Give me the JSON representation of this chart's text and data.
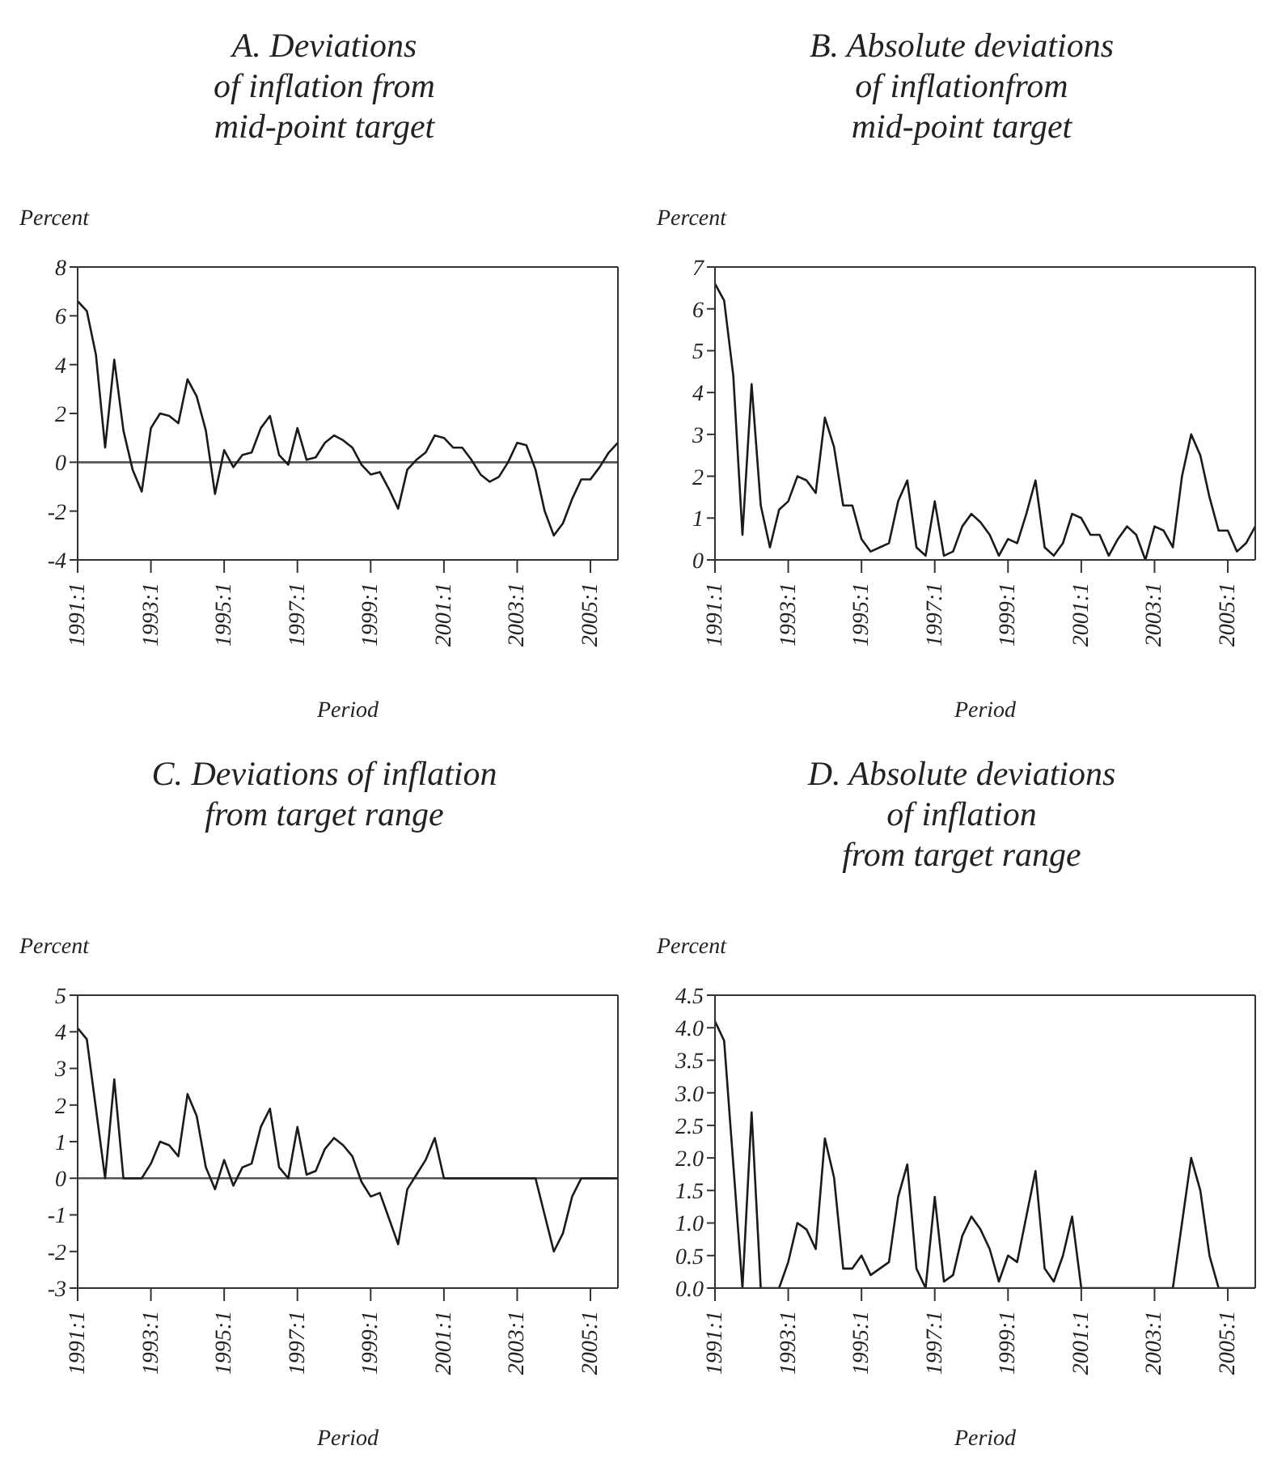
{
  "chart_data": [
    {
      "type": "line",
      "title": "A. Deviations\nof inflation from\nmid-point target",
      "ylabel": "Percent",
      "xlabel": "Period",
      "categories": [
        "1991:1",
        null,
        null,
        null,
        null,
        null,
        null,
        null,
        "1993:1",
        null,
        null,
        null,
        null,
        null,
        null,
        null,
        "1995:1",
        null,
        null,
        null,
        null,
        null,
        null,
        null,
        "1997:1",
        null,
        null,
        null,
        null,
        null,
        null,
        null,
        "1999:1",
        null,
        null,
        null,
        null,
        null,
        null,
        null,
        "2001:1",
        null,
        null,
        null,
        null,
        null,
        null,
        null,
        "2003:1",
        null,
        null,
        null,
        null,
        null,
        null,
        null,
        "2005:1",
        null,
        null,
        null
      ],
      "series": [
        {
          "color": "#1a1a1a",
          "values": [
            6.6,
            6.2,
            4.4,
            0.6,
            4.2,
            1.3,
            -0.3,
            -1.2,
            1.4,
            2.0,
            1.9,
            1.6,
            3.4,
            2.7,
            1.3,
            -1.3,
            0.5,
            -0.2,
            0.3,
            0.4,
            1.4,
            1.9,
            0.3,
            -0.1,
            1.4,
            0.1,
            0.2,
            0.8,
            1.1,
            0.9,
            0.6,
            -0.1,
            -0.5,
            -0.4,
            -1.1,
            -1.9,
            -0.3,
            0.1,
            0.4,
            1.1,
            1.0,
            0.6,
            0.6,
            0.1,
            -0.5,
            -0.8,
            -0.6,
            0.0,
            0.8,
            0.7,
            -0.3,
            -2.0,
            -3.0,
            -2.5,
            -1.5,
            -0.7,
            -0.7,
            -0.2,
            0.4,
            0.8
          ]
        }
      ],
      "ylim": [
        -4,
        8
      ],
      "yticks": [
        -4,
        -2,
        0,
        2,
        4,
        6,
        8
      ],
      "ref_lines": [
        {
          "axis": "y",
          "value": 0,
          "color": "#555555"
        }
      ]
    },
    {
      "type": "line",
      "title": "B. Absolute deviations\nof inflationfrom\nmid-point target",
      "ylabel": "Percent",
      "xlabel": "Period",
      "categories": [
        "1991:1",
        null,
        null,
        null,
        null,
        null,
        null,
        null,
        "1993:1",
        null,
        null,
        null,
        null,
        null,
        null,
        null,
        "1995:1",
        null,
        null,
        null,
        null,
        null,
        null,
        null,
        "1997:1",
        null,
        null,
        null,
        null,
        null,
        null,
        null,
        "1999:1",
        null,
        null,
        null,
        null,
        null,
        null,
        null,
        "2001:1",
        null,
        null,
        null,
        null,
        null,
        null,
        null,
        "2003:1",
        null,
        null,
        null,
        null,
        null,
        null,
        null,
        "2005:1",
        null,
        null,
        null
      ],
      "series": [
        {
          "color": "#1a1a1a",
          "values": [
            6.6,
            6.2,
            4.4,
            0.6,
            4.2,
            1.3,
            0.3,
            1.2,
            1.4,
            2.0,
            1.9,
            1.6,
            3.4,
            2.7,
            1.3,
            1.3,
            0.5,
            0.2,
            0.3,
            0.4,
            1.4,
            1.9,
            0.3,
            0.1,
            1.4,
            0.1,
            0.2,
            0.8,
            1.1,
            0.9,
            0.6,
            0.1,
            0.5,
            0.4,
            1.1,
            1.9,
            0.3,
            0.1,
            0.4,
            1.1,
            1.0,
            0.6,
            0.6,
            0.1,
            0.5,
            0.8,
            0.6,
            0.0,
            0.8,
            0.7,
            0.3,
            2.0,
            3.0,
            2.5,
            1.5,
            0.7,
            0.7,
            0.2,
            0.4,
            0.8
          ]
        }
      ],
      "ylim": [
        0,
        7
      ],
      "yticks": [
        0,
        1,
        2,
        3,
        4,
        5,
        6,
        7
      ]
    },
    {
      "type": "line",
      "title": "C. Deviations of inflation\nfrom target range",
      "ylabel": "Percent",
      "xlabel": "Period",
      "categories": [
        "1991:1",
        null,
        null,
        null,
        null,
        null,
        null,
        null,
        "1993:1",
        null,
        null,
        null,
        null,
        null,
        null,
        null,
        "1995:1",
        null,
        null,
        null,
        null,
        null,
        null,
        null,
        "1997:1",
        null,
        null,
        null,
        null,
        null,
        null,
        null,
        "1999:1",
        null,
        null,
        null,
        null,
        null,
        null,
        null,
        "2001:1",
        null,
        null,
        null,
        null,
        null,
        null,
        null,
        "2003:1",
        null,
        null,
        null,
        null,
        null,
        null,
        null,
        "2005:1",
        null,
        null,
        null
      ],
      "series": [
        {
          "color": "#1a1a1a",
          "values": [
            4.1,
            3.8,
            1.9,
            0,
            2.7,
            0,
            0,
            0,
            0.4,
            1.0,
            0.9,
            0.6,
            2.3,
            1.7,
            0.3,
            -0.3,
            0.5,
            -0.2,
            0.3,
            0.4,
            1.4,
            1.9,
            0.3,
            0.0,
            1.4,
            0.1,
            0.2,
            0.8,
            1.1,
            0.9,
            0.6,
            -0.1,
            -0.5,
            -0.4,
            -1.1,
            -1.8,
            -0.3,
            0.1,
            0.5,
            1.1,
            0,
            0,
            0,
            0,
            0,
            0,
            0,
            0,
            0,
            0,
            0,
            -1.0,
            -2.0,
            -1.5,
            -0.5,
            0,
            0,
            0,
            0,
            0
          ]
        }
      ],
      "ylim": [
        -3,
        5
      ],
      "yticks": [
        -3,
        -2,
        -1,
        0,
        1,
        2,
        3,
        4,
        5
      ],
      "ref_lines": [
        {
          "axis": "y",
          "value": 0,
          "color": "#555555"
        }
      ]
    },
    {
      "type": "line",
      "title": "D. Absolute deviations\nof inflation\nfrom target range",
      "ylabel": "Percent",
      "xlabel": "Period",
      "categories": [
        "1991:1",
        null,
        null,
        null,
        null,
        null,
        null,
        null,
        "1993:1",
        null,
        null,
        null,
        null,
        null,
        null,
        null,
        "1995:1",
        null,
        null,
        null,
        null,
        null,
        null,
        null,
        "1997:1",
        null,
        null,
        null,
        null,
        null,
        null,
        null,
        "1999:1",
        null,
        null,
        null,
        null,
        null,
        null,
        null,
        "2001:1",
        null,
        null,
        null,
        null,
        null,
        null,
        null,
        "2003:1",
        null,
        null,
        null,
        null,
        null,
        null,
        null,
        "2005:1",
        null,
        null,
        null
      ],
      "series": [
        {
          "color": "#1a1a1a",
          "values": [
            4.1,
            3.8,
            1.9,
            0,
            2.7,
            0,
            0,
            0,
            0.4,
            1.0,
            0.9,
            0.6,
            2.3,
            1.7,
            0.3,
            0.3,
            0.5,
            0.2,
            0.3,
            0.4,
            1.4,
            1.9,
            0.3,
            0.0,
            1.4,
            0.1,
            0.2,
            0.8,
            1.1,
            0.9,
            0.6,
            0.1,
            0.5,
            0.4,
            1.1,
            1.8,
            0.3,
            0.1,
            0.5,
            1.1,
            0,
            0,
            0,
            0,
            0,
            0,
            0,
            0,
            0,
            0,
            0,
            1.0,
            2.0,
            1.5,
            0.5,
            0,
            0,
            0,
            0,
            0
          ]
        }
      ],
      "ylim": [
        0,
        4.5
      ],
      "yticks": [
        {
          "value": 0,
          "label": "0.0"
        },
        {
          "value": 0.5,
          "label": "0.5"
        },
        {
          "value": 1,
          "label": "1.0"
        },
        {
          "value": 1.5,
          "label": "1.5"
        },
        {
          "value": 2,
          "label": "2.0"
        },
        {
          "value": 2.5,
          "label": "2.5"
        },
        {
          "value": 3,
          "label": "3.0"
        },
        {
          "value": 3.5,
          "label": "3.5"
        },
        {
          "value": 4,
          "label": "4.0"
        },
        {
          "value": 4.5,
          "label": "4.5"
        }
      ]
    }
  ]
}
